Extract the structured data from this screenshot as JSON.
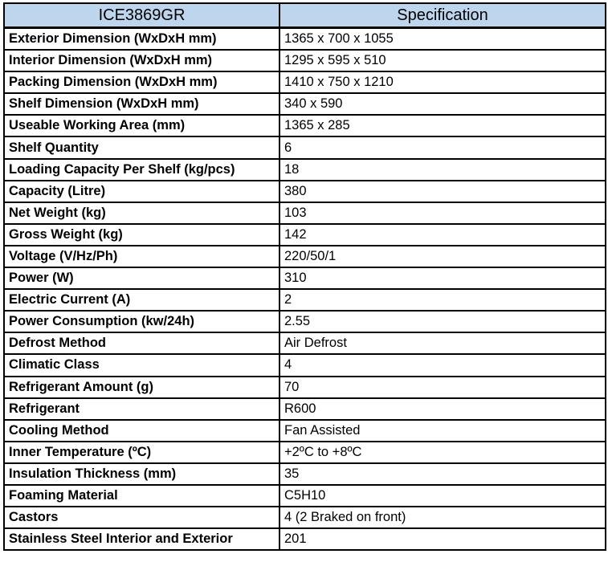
{
  "table": {
    "header": {
      "model": "ICE3869GR",
      "spec_label": "Specification"
    },
    "colors": {
      "header_bg": "#BDD6EE",
      "border": "#000000",
      "text": "#000000"
    },
    "rows": [
      {
        "label": "Exterior Dimension (WxDxH mm)",
        "value": "1365 x 700 x 1055"
      },
      {
        "label": "Interior Dimension (WxDxH mm)",
        "value": "1295 x 595 x 510"
      },
      {
        "label": "Packing Dimension (WxDxH mm)",
        "value": "1410 x 750 x 1210"
      },
      {
        "label": "Shelf Dimension (WxDxH mm)",
        "value": "340 x 590"
      },
      {
        "label": "Useable Working Area (mm)",
        "value": "1365 x 285"
      },
      {
        "label": "Shelf Quantity",
        "value": "6"
      },
      {
        "label": "Loading Capacity Per Shelf (kg/pcs)",
        "value": "18"
      },
      {
        "label": "Capacity (Litre)",
        "value": "380"
      },
      {
        "label": "Net Weight (kg)",
        "value": "103"
      },
      {
        "label": "Gross Weight (kg)",
        "value": "142"
      },
      {
        "label": "Voltage (V/Hz/Ph)",
        "value": "220/50/1"
      },
      {
        "label": "Power (W)",
        "value": "310"
      },
      {
        "label": "Electric Current (A)",
        "value": "2"
      },
      {
        "label": "Power Consumption (kw/24h)",
        "value": "2.55"
      },
      {
        "label": "Defrost Method",
        "value": "Air Defrost"
      },
      {
        "label": "Climatic Class",
        "value": "4"
      },
      {
        "label": "Refrigerant Amount (g)",
        "value": "70"
      },
      {
        "label": "Refrigerant",
        "value": "R600"
      },
      {
        "label": "Cooling Method",
        "value": "Fan Assisted"
      },
      {
        "label": "Inner Temperature (ºC)",
        "value": "+2ºC to +8ºC"
      },
      {
        "label": "Insulation Thickness (mm)",
        "value": "35"
      },
      {
        "label": "Foaming Material",
        "value": "C5H10"
      },
      {
        "label": "Castors",
        "value": "4 (2 Braked on front)"
      },
      {
        "label": "Stainless Steel Interior and Exterior",
        "value": "201"
      }
    ]
  }
}
